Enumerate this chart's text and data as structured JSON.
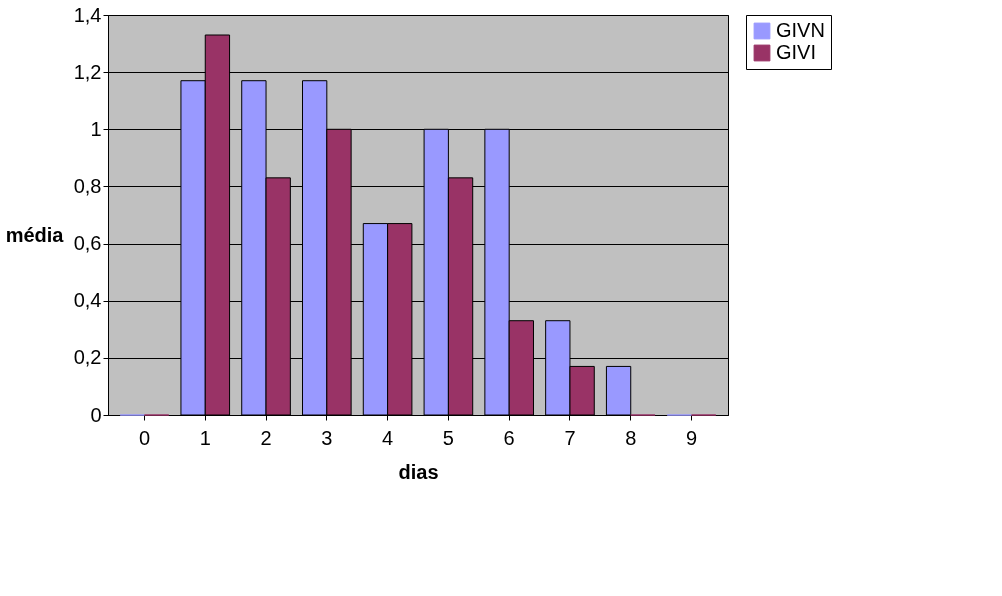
{
  "chart_data": {
    "type": "bar",
    "xlabel": "dias",
    "ylabel": "média",
    "categories": [
      "0",
      "1",
      "2",
      "3",
      "4",
      "5",
      "6",
      "7",
      "8",
      "9"
    ],
    "series": [
      {
        "name": "GIVN",
        "color": "#9999ff",
        "values": [
          0,
          1.17,
          1.17,
          1.17,
          0.67,
          1,
          1,
          0.33,
          0.17,
          0
        ]
      },
      {
        "name": "GIVI",
        "color": "#993366",
        "values": [
          0,
          1.33,
          0.83,
          1,
          0.67,
          0.83,
          0.33,
          0.17,
          0,
          0
        ]
      }
    ],
    "ylim": [
      0,
      1.4
    ],
    "yticks": [
      0,
      {
        "value": 0.2,
        "label": "0,2"
      },
      {
        "value": 0.4,
        "label": "0,4"
      },
      {
        "value": 0.6,
        "label": "0,6"
      },
      {
        "value": 0.8,
        "label": "0,8"
      },
      1,
      {
        "value": 1.2,
        "label": "1,2"
      },
      {
        "value": 1.4,
        "label": "1,4"
      }
    ],
    "grid": "y",
    "legend": "right"
  }
}
